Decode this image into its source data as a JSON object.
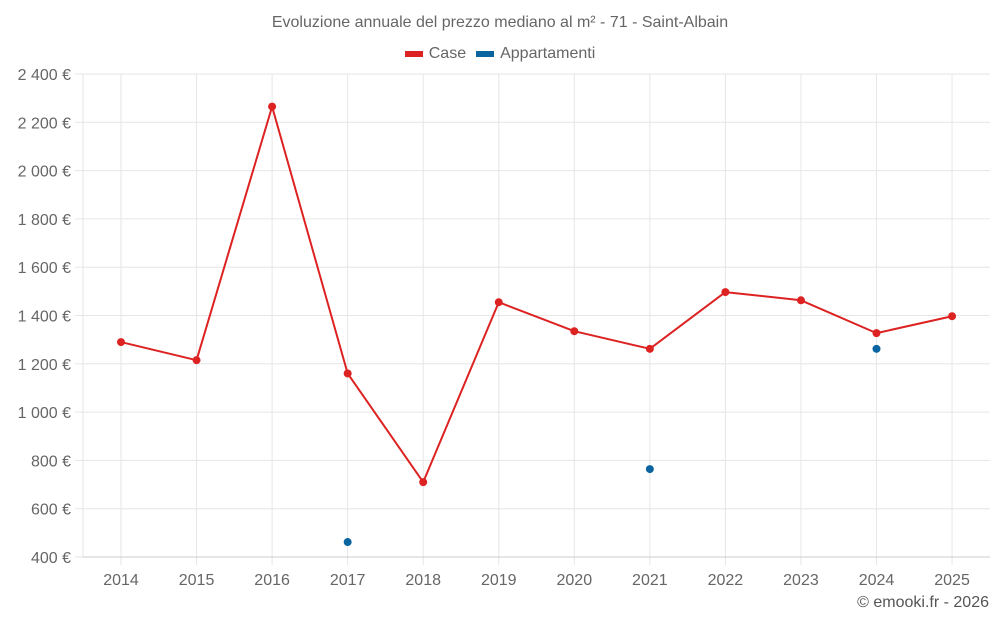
{
  "title": "Evoluzione annuale del prezzo mediano al m² - 71 - Saint-Albain",
  "legend": [
    {
      "label": "Case",
      "color": "#dd2222"
    },
    {
      "label": "Appartamenti",
      "color": "#0a64a0"
    }
  ],
  "credit": "© emooki.fr - 2026",
  "chart_data": {
    "type": "line",
    "title": "Evoluzione annuale del prezzo mediano al m² - 71 - Saint-Albain",
    "xlabel": "",
    "ylabel": "",
    "categories": [
      "2014",
      "2015",
      "2016",
      "2017",
      "2018",
      "2019",
      "2020",
      "2021",
      "2022",
      "2023",
      "2024",
      "2025"
    ],
    "y_ticks": [
      400,
      600,
      800,
      1000,
      1200,
      1400,
      1600,
      1800,
      2000,
      2200,
      2400
    ],
    "y_tick_labels": [
      "400 €",
      "600 €",
      "800 €",
      "1 000 €",
      "1 200 €",
      "1 400 €",
      "1 600 €",
      "1 800 €",
      "2 000 €",
      "2 200 €",
      "2 400 €"
    ],
    "ylim": [
      400,
      2400
    ],
    "grid": true,
    "legend_position": "top-center",
    "series": [
      {
        "name": "Case",
        "color": "#dd2222",
        "style": "line+markers",
        "values": [
          1290,
          1215,
          2265,
          1160,
          710,
          1455,
          1335,
          1262,
          1497,
          1463,
          1327,
          1397
        ]
      },
      {
        "name": "Appartamenti",
        "color": "#0a64a0",
        "style": "markers",
        "values": [
          null,
          null,
          null,
          462,
          null,
          null,
          null,
          764,
          null,
          null,
          1262,
          null
        ]
      }
    ]
  }
}
